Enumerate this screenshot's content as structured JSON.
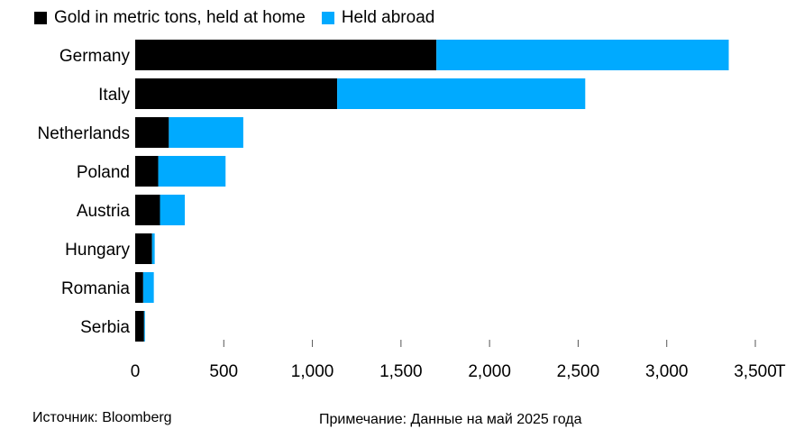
{
  "legend": {
    "home_label": "Gold in metric tons, held at home",
    "abroad_label": "Held abroad"
  },
  "colors": {
    "home": "#000000",
    "abroad": "#00aaff",
    "axis": "#555555"
  },
  "footer": {
    "source": "Источник: Bloomberg",
    "note": "Примечание: Данные на май 2025 года"
  },
  "chart_data": {
    "type": "bar",
    "orientation": "horizontal",
    "stacked": true,
    "categories": [
      "Germany",
      "Italy",
      "Netherlands",
      "Poland",
      "Austria",
      "Hungary",
      "Romania",
      "Serbia"
    ],
    "series": [
      {
        "name": "Gold in metric tons, held at home",
        "values": [
          1700,
          1140,
          190,
          130,
          140,
          95,
          45,
          50
        ]
      },
      {
        "name": "Held abroad",
        "values": [
          1650,
          1400,
          420,
          380,
          140,
          15,
          60,
          5
        ]
      }
    ],
    "xlim": [
      0,
      3500
    ],
    "x_ticks": [
      0,
      500,
      1000,
      1500,
      2000,
      2500,
      3000,
      3500
    ],
    "x_tick_labels": [
      "0",
      "500",
      "1,000",
      "1,500",
      "2,000",
      "2,500",
      "3,000",
      "3,500"
    ],
    "x_unit_suffix": "T",
    "grid": false,
    "legend_position": "top-left"
  }
}
